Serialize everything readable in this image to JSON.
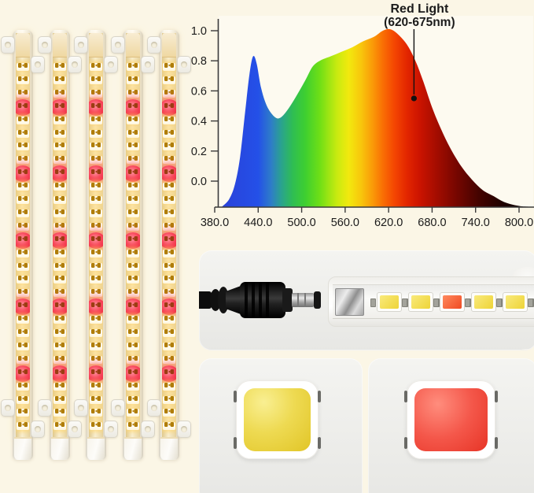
{
  "colors": {
    "background": "#FBF6E6",
    "panel_gray": "#ECECEA",
    "warm_white_led": "#FFF9E0",
    "red_led": "#F4435A",
    "gold_contact": "#B07D08",
    "chip_yellow": "#EDD94E",
    "chip_red": "#F14A3C",
    "plug_black": "#141414"
  },
  "chart_data": {
    "type": "area",
    "title": "",
    "xlabel": "",
    "ylabel": "",
    "x_range": [
      380,
      800
    ],
    "y_range": [
      0,
      1.0
    ],
    "grid": false,
    "legend": false,
    "x_ticks": [
      "380.0",
      "440.0",
      "500.0",
      "560.0",
      "620.0",
      "680.0",
      "740.0",
      "800.0"
    ],
    "x_tick_values": [
      380,
      440,
      500,
      560,
      620,
      680,
      740,
      800
    ],
    "y_ticks": [
      "1.0",
      "0.8",
      "0.6",
      "0.4",
      "0.2",
      "0.0"
    ],
    "y_tick_values": [
      1,
      0.8,
      0.6,
      0.4,
      0.2,
      0
    ],
    "annotation": {
      "line1": "Red Light",
      "line2": "(620-675nm)",
      "point_nm": 655,
      "point_value": 0.55
    },
    "curve_points_nm_value": [
      [
        390,
        -0.17
      ],
      [
        400,
        -0.12
      ],
      [
        408,
        -0.02
      ],
      [
        415,
        0.16
      ],
      [
        422,
        0.46
      ],
      [
        428,
        0.71
      ],
      [
        433,
        0.83
      ],
      [
        438,
        0.78
      ],
      [
        444,
        0.62
      ],
      [
        452,
        0.5
      ],
      [
        462,
        0.43
      ],
      [
        470,
        0.42
      ],
      [
        480,
        0.47
      ],
      [
        492,
        0.56
      ],
      [
        505,
        0.67
      ],
      [
        515,
        0.76
      ],
      [
        525,
        0.8
      ],
      [
        540,
        0.83
      ],
      [
        555,
        0.86
      ],
      [
        570,
        0.89
      ],
      [
        585,
        0.93
      ],
      [
        600,
        0.96
      ],
      [
        612,
        1.0
      ],
      [
        622,
        1.01
      ],
      [
        632,
        0.98
      ],
      [
        645,
        0.91
      ],
      [
        657,
        0.8
      ],
      [
        668,
        0.66
      ],
      [
        680,
        0.49
      ],
      [
        692,
        0.35
      ],
      [
        705,
        0.22
      ],
      [
        720,
        0.1
      ],
      [
        735,
        0.01
      ],
      [
        750,
        -0.06
      ],
      [
        765,
        -0.1
      ],
      [
        780,
        -0.14
      ],
      [
        800,
        -0.165
      ],
      [
        814,
        -0.17
      ]
    ],
    "spectrum_gradient_stops": [
      [
        380,
        "#2B3FD6"
      ],
      [
        440,
        "#2450E8"
      ],
      [
        458,
        "#2E7DC8"
      ],
      [
        472,
        "#2AA38E"
      ],
      [
        488,
        "#2FBE52"
      ],
      [
        505,
        "#3ECF30"
      ],
      [
        525,
        "#6FDF16"
      ],
      [
        548,
        "#C6EA10"
      ],
      [
        565,
        "#F2E90E"
      ],
      [
        582,
        "#F8C60C"
      ],
      [
        598,
        "#FA9A08"
      ],
      [
        612,
        "#F96F04"
      ],
      [
        628,
        "#F44602"
      ],
      [
        645,
        "#E32600"
      ],
      [
        662,
        "#CD1400"
      ],
      [
        685,
        "#A60D00"
      ],
      [
        710,
        "#7C0700"
      ],
      [
        745,
        "#430300"
      ],
      [
        780,
        "#1C0100"
      ],
      [
        814,
        "#0A0000"
      ]
    ]
  },
  "led_strips": {
    "count": 5,
    "leds_per_strip": 28,
    "red_led_indices": [
      3,
      8,
      13,
      18,
      23
    ]
  },
  "connector_strip": {
    "led_count": 6,
    "red_led_index": 2
  }
}
